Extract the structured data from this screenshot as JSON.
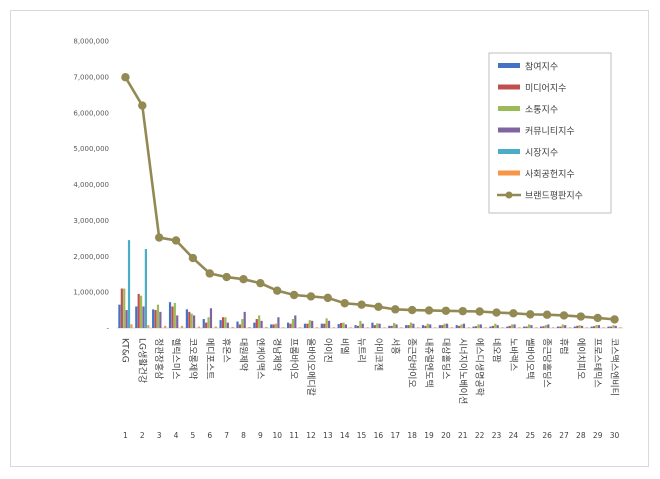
{
  "chart_data": {
    "type": "bar",
    "y_ticks": [
      "-",
      "1,000,000",
      "2,000,000",
      "3,000,000",
      "4,000,000",
      "5,000,000",
      "6,000,000",
      "7,000,000",
      "8,000,000"
    ],
    "ylim": [
      0,
      8000000
    ],
    "grid": false,
    "legend_position": "top-right",
    "categories": [
      "KT&G",
      "LG생활건강",
      "정관장홍삼",
      "헬릭스미스",
      "코오롱제약",
      "메디포스트",
      "휴온스",
      "대원제약",
      "엔케이맥스",
      "경남제약",
      "프롬바이오",
      "올바이오메디칼",
      "아이진",
      "비엘",
      "뉴트리",
      "아미코젠",
      "서흥",
      "종근당바이오",
      "내츄럴엔도텍",
      "대상홀딩스",
      "시너지이노베이션",
      "에스디생명공학",
      "네오팜",
      "노바렉스",
      "쎌바이오텍",
      "종근당홀딩스",
      "휴럼",
      "에이치피오",
      "프로스테믹스",
      "코스맥스엔비티"
    ],
    "ranks": [
      "1",
      "2",
      "3",
      "4",
      "5",
      "6",
      "7",
      "8",
      "9",
      "10",
      "11",
      "12",
      "13",
      "14",
      "15",
      "16",
      "17",
      "18",
      "19",
      "20",
      "21",
      "22",
      "23",
      "24",
      "25",
      "26",
      "27",
      "28",
      "29",
      "30"
    ],
    "series": [
      {
        "name": "참여지수",
        "kind": "bar",
        "color": "#4472C4",
        "values": [
          650000,
          600000,
          520000,
          720000,
          520000,
          250000,
          220000,
          180000,
          150000,
          100000,
          150000,
          120000,
          120000,
          110000,
          80000,
          150000,
          60000,
          80000,
          80000,
          80000,
          80000,
          40000,
          40000,
          40000,
          40000,
          40000,
          40000,
          40000,
          40000,
          40000
        ]
      },
      {
        "name": "미디어지수",
        "kind": "bar",
        "color": "#C0504D",
        "values": [
          1100000,
          950000,
          500000,
          600000,
          450000,
          150000,
          300000,
          100000,
          250000,
          100000,
          120000,
          120000,
          120000,
          140000,
          60000,
          80000,
          60000,
          80000,
          60000,
          80000,
          60000,
          50000,
          60000,
          60000,
          40000,
          50000,
          40000,
          60000,
          50000,
          40000
        ]
      },
      {
        "name": "소통지수",
        "kind": "bar",
        "color": "#9BBB59",
        "values": [
          1100000,
          900000,
          650000,
          700000,
          400000,
          300000,
          300000,
          250000,
          350000,
          120000,
          250000,
          220000,
          270000,
          150000,
          200000,
          130000,
          140000,
          150000,
          120000,
          120000,
          100000,
          100000,
          120000,
          100000,
          100000,
          80000,
          100000,
          80000,
          80000,
          80000
        ]
      },
      {
        "name": "커뮤니티지수",
        "kind": "bar",
        "color": "#8064A2",
        "values": [
          500000,
          600000,
          450000,
          350000,
          350000,
          550000,
          150000,
          450000,
          200000,
          300000,
          350000,
          200000,
          200000,
          100000,
          120000,
          120000,
          100000,
          120000,
          100000,
          120000,
          120000,
          100000,
          80000,
          100000,
          80000,
          100000,
          80000,
          60000,
          80000,
          60000
        ]
      },
      {
        "name": "시장지수",
        "kind": "bar",
        "color": "#4BACC6",
        "values": [
          2450000,
          2200000,
          0,
          0,
          0,
          0,
          0,
          0,
          0,
          0,
          0,
          0,
          0,
          0,
          0,
          0,
          0,
          0,
          0,
          0,
          0,
          0,
          0,
          0,
          0,
          0,
          0,
          0,
          0,
          0
        ]
      },
      {
        "name": "사회공헌지수",
        "kind": "bar",
        "color": "#F79646",
        "values": [
          100000,
          80000,
          60000,
          60000,
          40000,
          40000,
          30000,
          30000,
          30000,
          20000,
          20000,
          20000,
          20000,
          20000,
          20000,
          20000,
          20000,
          20000,
          20000,
          20000,
          20000,
          20000,
          20000,
          20000,
          20000,
          20000,
          20000,
          20000,
          20000,
          20000
        ]
      },
      {
        "name": "브랜드평판지수",
        "kind": "line",
        "color": "#938953",
        "values": [
          6990000,
          6200000,
          2520000,
          2440000,
          1950000,
          1520000,
          1420000,
          1360000,
          1250000,
          1040000,
          920000,
          880000,
          840000,
          690000,
          650000,
          590000,
          520000,
          500000,
          490000,
          480000,
          470000,
          460000,
          430000,
          410000,
          380000,
          370000,
          350000,
          320000,
          280000,
          240000
        ]
      }
    ]
  }
}
